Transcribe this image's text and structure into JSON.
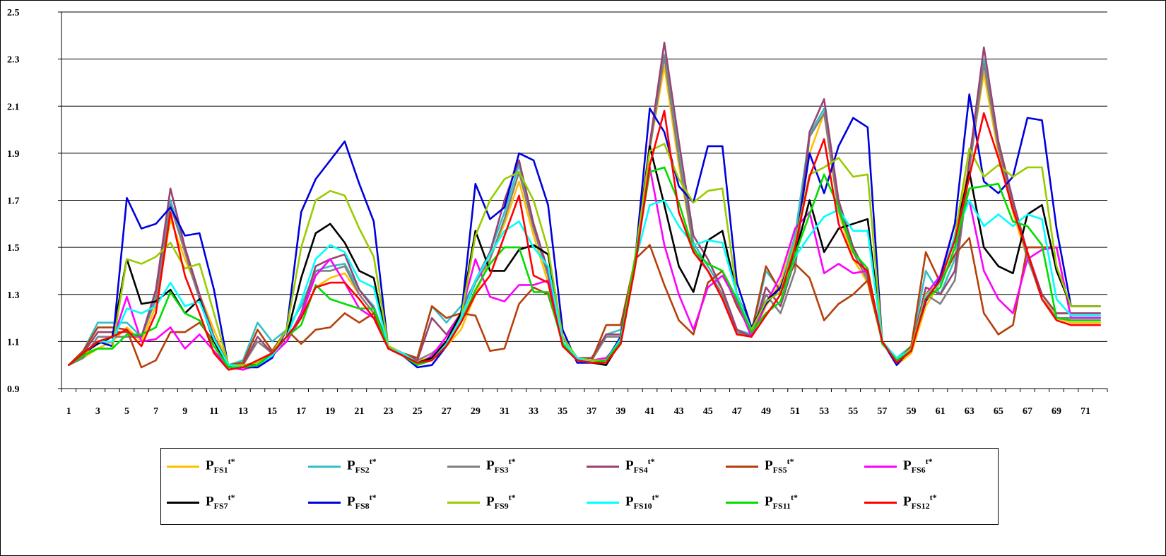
{
  "chart_data": {
    "type": "line",
    "title": "",
    "xlabel": "",
    "ylabel": "",
    "ylim": [
      0.9,
      2.5
    ],
    "yticks": [
      "0.9",
      "1.1",
      "1.3",
      "1.5",
      "1.7",
      "1.9",
      "2.1",
      "2.3",
      "2.5"
    ],
    "xlim": [
      1,
      72
    ],
    "xticks": [
      "1",
      "3",
      "5",
      "7",
      "9",
      "11",
      "13",
      "15",
      "17",
      "19",
      "21",
      "23",
      "25",
      "27",
      "29",
      "31",
      "33",
      "35",
      "37",
      "39",
      "41",
      "43",
      "45",
      "47",
      "49",
      "51",
      "53",
      "55",
      "57",
      "59",
      "61",
      "63",
      "65",
      "67",
      "69",
      "71"
    ],
    "grid": "horizontal",
    "legend_position": "bottom",
    "series": [
      {
        "name": "FS1",
        "color": "#FFC000",
        "values": [
          1.0,
          1.03,
          1.07,
          1.1,
          1.16,
          1.1,
          1.25,
          1.62,
          1.45,
          1.3,
          1.15,
          1.0,
          0.99,
          1.02,
          1.05,
          1.1,
          1.2,
          1.33,
          1.37,
          1.39,
          1.3,
          1.22,
          1.07,
          1.05,
          1.02,
          1.03,
          1.08,
          1.15,
          1.3,
          1.45,
          1.6,
          1.78,
          1.55,
          1.35,
          1.1,
          1.02,
          1.01,
          1.02,
          1.1,
          1.45,
          1.92,
          2.27,
          1.85,
          1.5,
          1.4,
          1.3,
          1.15,
          1.12,
          1.25,
          1.35,
          1.55,
          1.9,
          2.07,
          1.65,
          1.45,
          1.35,
          1.1,
          1.0,
          1.05,
          1.25,
          1.35,
          1.55,
          1.85,
          2.24,
          1.9,
          1.65,
          1.45,
          1.3,
          1.2,
          1.18,
          1.18,
          1.18
        ]
      },
      {
        "name": "FS2",
        "color": "#33C0C8",
        "values": [
          1.0,
          1.06,
          1.18,
          1.18,
          1.18,
          1.12,
          1.3,
          1.7,
          1.5,
          1.3,
          1.12,
          1.0,
          1.02,
          1.18,
          1.1,
          1.15,
          1.25,
          1.4,
          1.42,
          1.43,
          1.32,
          1.25,
          1.08,
          1.05,
          1.03,
          1.25,
          1.18,
          1.25,
          1.35,
          1.48,
          1.65,
          1.85,
          1.6,
          1.4,
          1.12,
          1.03,
          1.03,
          1.13,
          1.15,
          1.45,
          1.92,
          2.32,
          1.9,
          1.52,
          1.42,
          1.32,
          1.15,
          1.13,
          1.4,
          1.32,
          1.55,
          1.98,
          2.09,
          1.68,
          1.5,
          1.38,
          1.1,
          1.03,
          1.08,
          1.4,
          1.3,
          1.45,
          1.85,
          2.3,
          1.95,
          1.7,
          1.45,
          1.3,
          1.22,
          1.22,
          1.22,
          1.22
        ]
      },
      {
        "name": "FS3",
        "color": "#808080",
        "values": [
          1.0,
          1.03,
          1.12,
          1.12,
          1.12,
          1.12,
          1.28,
          1.68,
          1.48,
          1.28,
          1.1,
          1.0,
          1.0,
          1.1,
          1.05,
          1.1,
          1.2,
          1.4,
          1.4,
          1.42,
          1.3,
          1.22,
          1.07,
          1.05,
          1.02,
          1.05,
          1.1,
          1.2,
          1.35,
          1.45,
          1.62,
          1.82,
          1.58,
          1.38,
          1.1,
          1.02,
          1.02,
          1.12,
          1.12,
          1.45,
          1.92,
          2.31,
          1.88,
          1.5,
          1.4,
          1.3,
          1.14,
          1.12,
          1.3,
          1.22,
          1.4,
          1.97,
          2.07,
          1.66,
          1.48,
          1.36,
          1.1,
          1.02,
          1.06,
          1.3,
          1.26,
          1.36,
          1.83,
          2.28,
          1.92,
          1.68,
          1.46,
          1.28,
          1.2,
          1.2,
          1.2,
          1.2
        ]
      },
      {
        "name": "FS4",
        "color": "#9A4373",
        "values": [
          1.0,
          1.05,
          1.14,
          1.14,
          1.14,
          1.12,
          1.32,
          1.75,
          1.5,
          1.3,
          1.12,
          1.0,
          1.0,
          1.12,
          1.05,
          1.1,
          1.22,
          1.42,
          1.45,
          1.47,
          1.32,
          1.24,
          1.08,
          1.05,
          1.02,
          1.2,
          1.13,
          1.22,
          1.36,
          1.48,
          1.7,
          1.87,
          1.6,
          1.4,
          1.1,
          1.03,
          1.03,
          1.13,
          1.13,
          1.46,
          1.94,
          2.37,
          1.95,
          1.55,
          1.45,
          1.32,
          1.15,
          1.12,
          1.33,
          1.25,
          1.45,
          1.99,
          2.13,
          1.7,
          1.5,
          1.38,
          1.1,
          1.02,
          1.07,
          1.33,
          1.3,
          1.4,
          1.87,
          2.35,
          1.95,
          1.7,
          1.48,
          1.3,
          1.22,
          1.22,
          1.22,
          1.22
        ]
      },
      {
        "name": "FS5",
        "color": "#B5400C",
        "values": [
          1.0,
          1.06,
          1.16,
          1.16,
          1.15,
          0.99,
          1.02,
          1.14,
          1.14,
          1.18,
          1.1,
          1.0,
          1.01,
          1.15,
          1.06,
          1.15,
          1.09,
          1.15,
          1.16,
          1.22,
          1.18,
          1.22,
          1.07,
          1.05,
          1.03,
          1.25,
          1.2,
          1.22,
          1.21,
          1.06,
          1.07,
          1.26,
          1.33,
          1.3,
          1.1,
          1.02,
          1.02,
          1.17,
          1.17,
          1.45,
          1.51,
          1.34,
          1.19,
          1.13,
          1.35,
          1.4,
          1.25,
          1.14,
          1.42,
          1.31,
          1.43,
          1.37,
          1.19,
          1.26,
          1.3,
          1.36,
          1.1,
          1.01,
          1.08,
          1.48,
          1.35,
          1.47,
          1.54,
          1.22,
          1.13,
          1.17,
          1.5,
          1.5,
          1.5,
          1.2,
          1.2,
          1.2
        ]
      },
      {
        "name": "FS6",
        "color": "#FF00FF",
        "values": [
          1.0,
          1.05,
          1.1,
          1.1,
          1.29,
          1.1,
          1.11,
          1.16,
          1.07,
          1.13,
          1.06,
          0.99,
          0.98,
          1.0,
          1.04,
          1.1,
          1.21,
          1.38,
          1.45,
          1.35,
          1.24,
          1.2,
          1.07,
          1.04,
          1.0,
          1.04,
          1.12,
          1.22,
          1.45,
          1.29,
          1.27,
          1.34,
          1.34,
          1.36,
          1.1,
          1.02,
          1.02,
          1.03,
          1.1,
          1.43,
          1.84,
          1.51,
          1.3,
          1.15,
          1.33,
          1.38,
          1.27,
          1.12,
          1.26,
          1.38,
          1.58,
          1.65,
          1.39,
          1.43,
          1.39,
          1.4,
          1.1,
          1.02,
          1.06,
          1.3,
          1.38,
          1.6,
          1.7,
          1.4,
          1.28,
          1.22,
          1.45,
          1.49,
          1.5,
          1.2,
          1.2,
          1.2
        ]
      },
      {
        "name": "FS7",
        "color": "#000000",
        "values": [
          1.0,
          1.05,
          1.09,
          1.12,
          1.45,
          1.26,
          1.27,
          1.32,
          1.22,
          1.28,
          1.1,
          0.99,
          1.0,
          1.0,
          1.05,
          1.12,
          1.37,
          1.56,
          1.6,
          1.52,
          1.4,
          1.37,
          1.07,
          1.05,
          1.01,
          1.03,
          1.1,
          1.22,
          1.57,
          1.4,
          1.4,
          1.49,
          1.51,
          1.47,
          1.12,
          1.03,
          1.01,
          1.0,
          1.1,
          1.45,
          1.93,
          1.68,
          1.42,
          1.31,
          1.53,
          1.57,
          1.3,
          1.16,
          1.27,
          1.33,
          1.47,
          1.7,
          1.48,
          1.58,
          1.6,
          1.62,
          1.1,
          1.02,
          1.06,
          1.3,
          1.35,
          1.55,
          1.82,
          1.5,
          1.42,
          1.39,
          1.64,
          1.68,
          1.4,
          1.25,
          1.25,
          1.25
        ]
      },
      {
        "name": "FS8",
        "color": "#0000DD",
        "values": [
          1.0,
          1.04,
          1.1,
          1.08,
          1.71,
          1.58,
          1.6,
          1.67,
          1.55,
          1.56,
          1.32,
          0.99,
          0.99,
          0.99,
          1.03,
          1.15,
          1.65,
          1.79,
          1.87,
          1.95,
          1.77,
          1.61,
          1.07,
          1.04,
          0.99,
          1.0,
          1.08,
          1.2,
          1.77,
          1.62,
          1.67,
          1.9,
          1.87,
          1.68,
          1.15,
          1.01,
          1.01,
          1.02,
          1.12,
          1.45,
          2.09,
          1.99,
          1.76,
          1.69,
          1.93,
          1.93,
          1.35,
          1.16,
          1.26,
          1.33,
          1.5,
          1.9,
          1.73,
          1.93,
          2.05,
          2.01,
          1.1,
          1.0,
          1.07,
          1.27,
          1.37,
          1.6,
          2.15,
          1.78,
          1.73,
          1.8,
          2.05,
          2.04,
          1.58,
          1.25,
          1.25,
          1.25
        ]
      },
      {
        "name": "FS9",
        "color": "#99CC00",
        "values": [
          1.0,
          1.05,
          1.07,
          1.07,
          1.45,
          1.43,
          1.46,
          1.52,
          1.41,
          1.43,
          1.22,
          1.0,
          1.0,
          1.01,
          1.05,
          1.15,
          1.5,
          1.7,
          1.74,
          1.72,
          1.58,
          1.46,
          1.08,
          1.05,
          1.01,
          1.02,
          1.08,
          1.2,
          1.55,
          1.7,
          1.79,
          1.82,
          1.7,
          1.49,
          1.12,
          1.03,
          1.02,
          1.02,
          1.11,
          1.46,
          1.91,
          1.94,
          1.79,
          1.69,
          1.74,
          1.75,
          1.3,
          1.15,
          1.27,
          1.31,
          1.52,
          1.81,
          1.84,
          1.88,
          1.8,
          1.81,
          1.1,
          1.02,
          1.07,
          1.3,
          1.35,
          1.55,
          1.92,
          1.8,
          1.85,
          1.8,
          1.84,
          1.84,
          1.42,
          1.25,
          1.25,
          1.25
        ]
      },
      {
        "name": "FS10",
        "color": "#00FFFF",
        "values": [
          1.0,
          1.05,
          1.1,
          1.1,
          1.24,
          1.22,
          1.25,
          1.35,
          1.25,
          1.27,
          1.11,
          1.0,
          0.99,
          1.0,
          1.04,
          1.12,
          1.27,
          1.45,
          1.51,
          1.48,
          1.36,
          1.33,
          1.07,
          1.05,
          1.01,
          1.02,
          1.09,
          1.2,
          1.36,
          1.47,
          1.57,
          1.61,
          1.5,
          1.42,
          1.1,
          1.03,
          1.01,
          1.02,
          1.11,
          1.44,
          1.68,
          1.7,
          1.59,
          1.51,
          1.53,
          1.52,
          1.3,
          1.14,
          1.22,
          1.27,
          1.46,
          1.55,
          1.63,
          1.66,
          1.57,
          1.57,
          1.1,
          1.03,
          1.06,
          1.29,
          1.35,
          1.55,
          1.7,
          1.59,
          1.64,
          1.59,
          1.64,
          1.62,
          1.28,
          1.21,
          1.21,
          1.21
        ]
      },
      {
        "name": "FS11",
        "color": "#00DD00",
        "values": [
          1.0,
          1.04,
          1.07,
          1.07,
          1.13,
          1.13,
          1.16,
          1.31,
          1.22,
          1.19,
          1.08,
          0.99,
          0.99,
          1.0,
          1.05,
          1.12,
          1.17,
          1.34,
          1.28,
          1.26,
          1.24,
          1.24,
          1.07,
          1.04,
          1.0,
          1.02,
          1.08,
          1.18,
          1.32,
          1.43,
          1.5,
          1.5,
          1.31,
          1.31,
          1.09,
          1.02,
          1.01,
          1.02,
          1.1,
          1.45,
          1.82,
          1.84,
          1.69,
          1.49,
          1.43,
          1.4,
          1.28,
          1.14,
          1.22,
          1.27,
          1.47,
          1.64,
          1.81,
          1.67,
          1.48,
          1.41,
          1.09,
          1.02,
          1.06,
          1.28,
          1.33,
          1.5,
          1.75,
          1.76,
          1.77,
          1.61,
          1.59,
          1.51,
          1.2,
          1.19,
          1.19,
          1.19
        ]
      },
      {
        "name": "FS12",
        "color": "#FF0000",
        "values": [
          1.0,
          1.05,
          1.1,
          1.12,
          1.15,
          1.08,
          1.22,
          1.65,
          1.38,
          1.22,
          1.05,
          0.98,
          0.99,
          1.02,
          1.05,
          1.12,
          1.2,
          1.33,
          1.35,
          1.35,
          1.28,
          1.2,
          1.07,
          1.04,
          1.01,
          1.02,
          1.08,
          1.18,
          1.3,
          1.38,
          1.55,
          1.72,
          1.38,
          1.35,
          1.08,
          1.02,
          1.01,
          1.01,
          1.09,
          1.42,
          1.85,
          2.08,
          1.65,
          1.48,
          1.4,
          1.28,
          1.13,
          1.12,
          1.21,
          1.3,
          1.5,
          1.8,
          1.96,
          1.6,
          1.45,
          1.4,
          1.1,
          1.01,
          1.06,
          1.28,
          1.36,
          1.53,
          1.8,
          2.07,
          1.88,
          1.66,
          1.48,
          1.28,
          1.19,
          1.17,
          1.17,
          1.17
        ]
      }
    ]
  },
  "legend": {
    "items": [
      {
        "base": "P",
        "sub": "FS1",
        "sup": "t*"
      },
      {
        "base": "P",
        "sub": "FS2",
        "sup": "t*"
      },
      {
        "base": "P",
        "sub": "FS3",
        "sup": "t*"
      },
      {
        "base": "P",
        "sub": "FS4",
        "sup": "t*"
      },
      {
        "base": "P",
        "sub": "FS5",
        "sup": "t*"
      },
      {
        "base": "P",
        "sub": "FS6",
        "sup": "t*"
      },
      {
        "base": "P",
        "sub": "FS7",
        "sup": "t*"
      },
      {
        "base": "P",
        "sub": "FS8",
        "sup": "t*"
      },
      {
        "base": "P",
        "sub": "FS9",
        "sup": "t*"
      },
      {
        "base": "P",
        "sub": "FS10",
        "sup": "t*"
      },
      {
        "base": "P",
        "sub": "FS11",
        "sup": "t*"
      },
      {
        "base": "P",
        "sub": "FS12",
        "sup": "t*"
      }
    ]
  }
}
